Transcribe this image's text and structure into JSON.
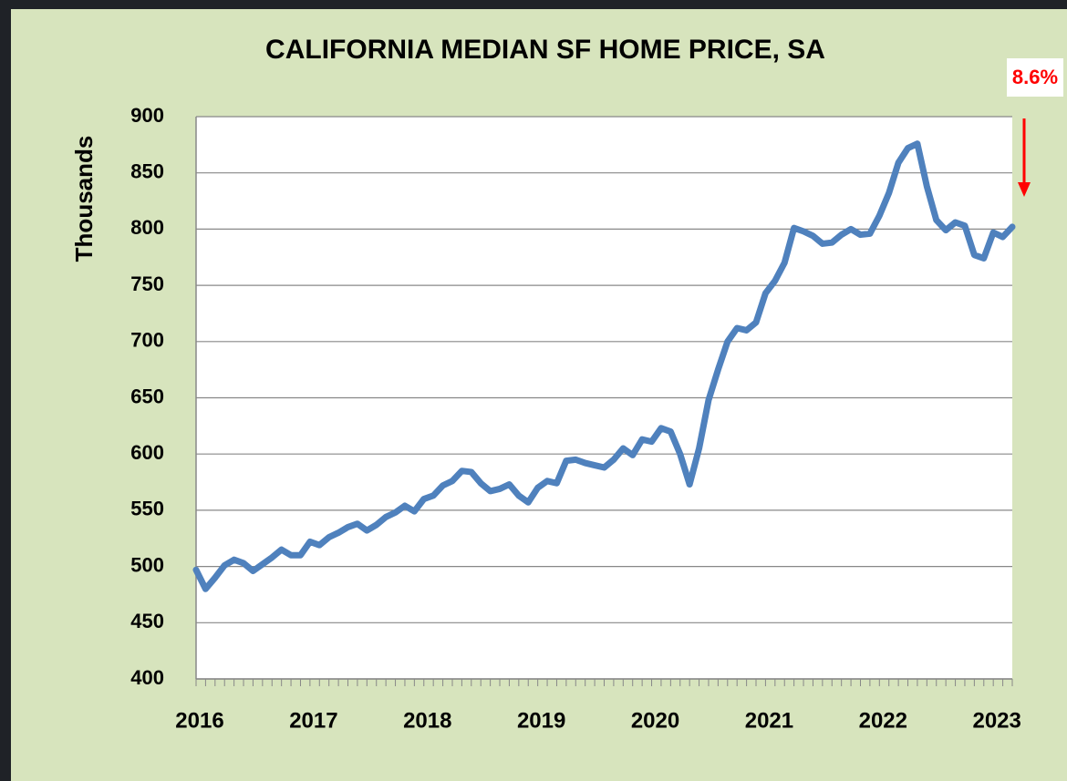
{
  "chart_data": {
    "type": "line",
    "title": "CALIFORNIA MEDIAN SF HOME PRICE, SA",
    "y_label": "Thousands",
    "annotation": "8.6%",
    "categories": [
      "2016",
      null,
      null,
      null,
      null,
      null,
      null,
      null,
      null,
      null,
      null,
      null,
      "2017",
      null,
      null,
      null,
      null,
      null,
      null,
      null,
      null,
      null,
      null,
      null,
      "2018",
      null,
      null,
      null,
      null,
      null,
      null,
      null,
      null,
      null,
      null,
      null,
      "2019",
      null,
      null,
      null,
      null,
      null,
      null,
      null,
      null,
      null,
      null,
      null,
      "2020",
      null,
      null,
      null,
      null,
      null,
      null,
      null,
      null,
      null,
      null,
      null,
      "2021",
      null,
      null,
      null,
      null,
      null,
      null,
      null,
      null,
      null,
      null,
      null,
      "2022",
      null,
      null,
      null,
      null,
      null,
      null,
      null,
      null,
      null,
      null,
      null,
      "2023",
      null,
      null
    ],
    "series": [
      {
        "name": "Median SF Home Price",
        "color": "#4f81bd",
        "values": [
          497,
          480,
          490,
          501,
          506,
          503,
          496,
          502,
          508,
          515,
          510,
          510,
          522,
          519,
          526,
          530,
          535,
          538,
          532,
          537,
          544,
          548,
          554,
          549,
          560,
          563,
          572,
          576,
          585,
          584,
          574,
          567,
          569,
          573,
          563,
          557,
          570,
          576,
          574,
          594,
          595,
          592,
          590,
          588,
          595,
          605,
          599,
          613,
          611,
          623,
          620,
          600,
          573,
          605,
          648,
          675,
          700,
          712,
          710,
          717,
          743,
          754,
          770,
          801,
          798,
          794,
          787,
          788,
          795,
          800,
          795,
          796,
          812,
          832,
          859,
          872,
          876,
          838,
          808,
          799,
          806,
          803,
          777,
          774,
          797,
          793,
          802
        ]
      }
    ],
    "ylim": [
      400,
      900
    ],
    "yticks": [
      400,
      450,
      500,
      550,
      600,
      650,
      700,
      750,
      800,
      850,
      900
    ],
    "grid": true
  }
}
